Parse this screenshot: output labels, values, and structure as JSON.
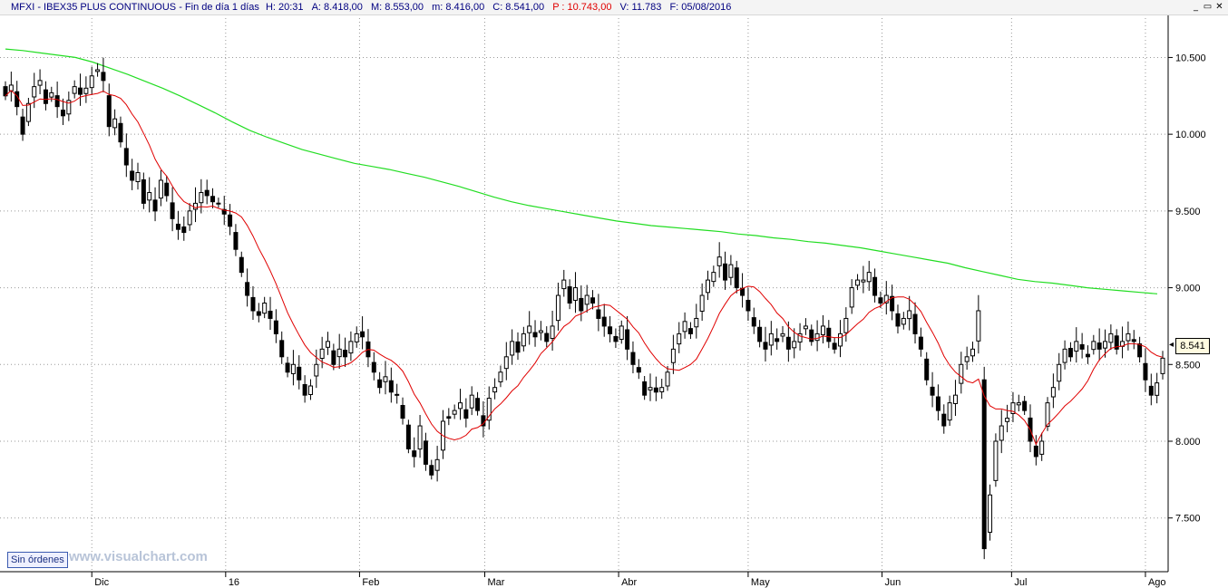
{
  "header": {
    "title": "MFXI - IBEX35 PLUS CONTINUOUS - Fin de día 1 días",
    "h": "H: 20:31",
    "a": "A: 8.418,00",
    "m_high": "M: 8.553,00",
    "m_low": "m: 8.416,00",
    "c": "C: 8.541,00",
    "p": "P : 10.743,00",
    "v": "V: 11.783",
    "f": "F: 05/08/2016"
  },
  "window_controls": {
    "minimize": "_",
    "restore": "▭",
    "close": "✕"
  },
  "status_badge": "Sin órdenes",
  "watermark": "www.visualchart.com",
  "last_price_label": "8.541",
  "colors": {
    "candle_up": "#ffffff",
    "candle_down": "#000000",
    "ma_short": "#e00000",
    "ma_long": "#22dd22",
    "grid": "#9a9a9a",
    "header_text": "#000080",
    "header_red": "#e00000"
  },
  "chart_data": {
    "type": "candlestick",
    "x_range": [
      "2015-11-11",
      "2016-08-05"
    ],
    "ylim": [
      7150,
      10780
    ],
    "yticks": [
      7500,
      8000,
      8500,
      9000,
      9500,
      10000,
      10500
    ],
    "ytick_labels": [
      "7.500",
      "8.000",
      "8.500",
      "9.000",
      "9.500",
      "10.000",
      "10.500"
    ],
    "xticks": [
      "2015-12-01",
      "2016-01-01",
      "2016-02-01",
      "2016-03-01",
      "2016-04-01",
      "2016-05-01",
      "2016-06-01",
      "2016-07-01",
      "2016-08-01"
    ],
    "xtick_labels": [
      "Dic",
      "16",
      "Feb",
      "Mar",
      "Abr",
      "May",
      "Jun",
      "Jul",
      "Ago"
    ],
    "grid": true,
    "closes": [
      10250,
      10320,
      10180,
      10000,
      10200,
      10310,
      10350,
      10200,
      10270,
      10180,
      10120,
      10220,
      10310,
      10260,
      10300,
      10380,
      10420,
      10350,
      10050,
      10100,
      9950,
      9800,
      9700,
      9750,
      9550,
      9620,
      9500,
      9700,
      9600,
      9450,
      9380,
      9360,
      9500,
      9550,
      9620,
      9600,
      9560,
      9550,
      9480,
      9400,
      9250,
      9100,
      8950,
      8850,
      8820,
      8900,
      8800,
      8700,
      8550,
      8450,
      8500,
      8400,
      8300,
      8360,
      8500,
      8600,
      8650,
      8500,
      8600,
      8550,
      8650,
      8700,
      8680,
      8550,
      8450,
      8350,
      8420,
      8320,
      8300,
      8150,
      7950,
      7900,
      8100,
      7850,
      7780,
      7880,
      8130,
      8150,
      8200,
      8250,
      8150,
      8300,
      8200,
      8100,
      8280,
      8350,
      8450,
      8550,
      8650,
      8580,
      8700,
      8750,
      8680,
      8720,
      8650,
      8750,
      8950,
      9050,
      8900,
      9000,
      8850,
      8950,
      8900,
      8800,
      8750,
      8700,
      8650,
      8750,
      8600,
      8500,
      8450,
      8300,
      8350,
      8320,
      8350,
      8450,
      8600,
      8700,
      8780,
      8700,
      8800,
      8950,
      9050,
      9100,
      9200,
      9050,
      9150,
      9000,
      8950,
      8850,
      8750,
      8650,
      8600,
      8700,
      8650,
      8700,
      8600,
      8650,
      8700,
      8750,
      8650,
      8700,
      8750,
      8650,
      8600,
      8700,
      8800,
      9000,
      9050,
      9050,
      9100,
      8950,
      8900,
      8950,
      8850,
      8750,
      8800,
      8850,
      8700,
      8600,
      8400,
      8300,
      8200,
      8100,
      8250,
      8300,
      8500,
      8550,
      8600,
      8850,
      7300,
      7650,
      8000,
      8100,
      8150,
      8250,
      8250,
      8200,
      8000,
      7900,
      8000,
      8250,
      8350,
      8500,
      8600,
      8550,
      8650,
      8600,
      8550,
      8650,
      8600,
      8650,
      8700,
      8600,
      8650,
      8700,
      8650,
      8550,
      8400,
      8300,
      8380,
      8541
    ],
    "series": [
      {
        "kind": "price",
        "values_ref": "closes"
      },
      {
        "kind": "moving-average",
        "period": 10,
        "color": "#e00000"
      },
      {
        "kind": "moving-average",
        "period": 200,
        "color": "#22dd22",
        "values": [
          10555,
          10545,
          10530,
          10515,
          10500,
          10470,
          10430,
          10390,
          10345,
          10300,
          10250,
          10195,
          10140,
          10080,
          10025,
          9980,
          9940,
          9900,
          9870,
          9840,
          9810,
          9790,
          9770,
          9745,
          9720,
          9690,
          9660,
          9625,
          9590,
          9560,
          9535,
          9515,
          9495,
          9475,
          9455,
          9435,
          9420,
          9405,
          9395,
          9385,
          9375,
          9365,
          9350,
          9340,
          9325,
          9315,
          9300,
          9290,
          9275,
          9260,
          9240,
          9220,
          9200,
          9180,
          9160,
          9130,
          9105,
          9080,
          9055,
          9040,
          9030,
          9015,
          9000,
          8990,
          8980,
          8970,
          8960
        ]
      }
    ]
  }
}
